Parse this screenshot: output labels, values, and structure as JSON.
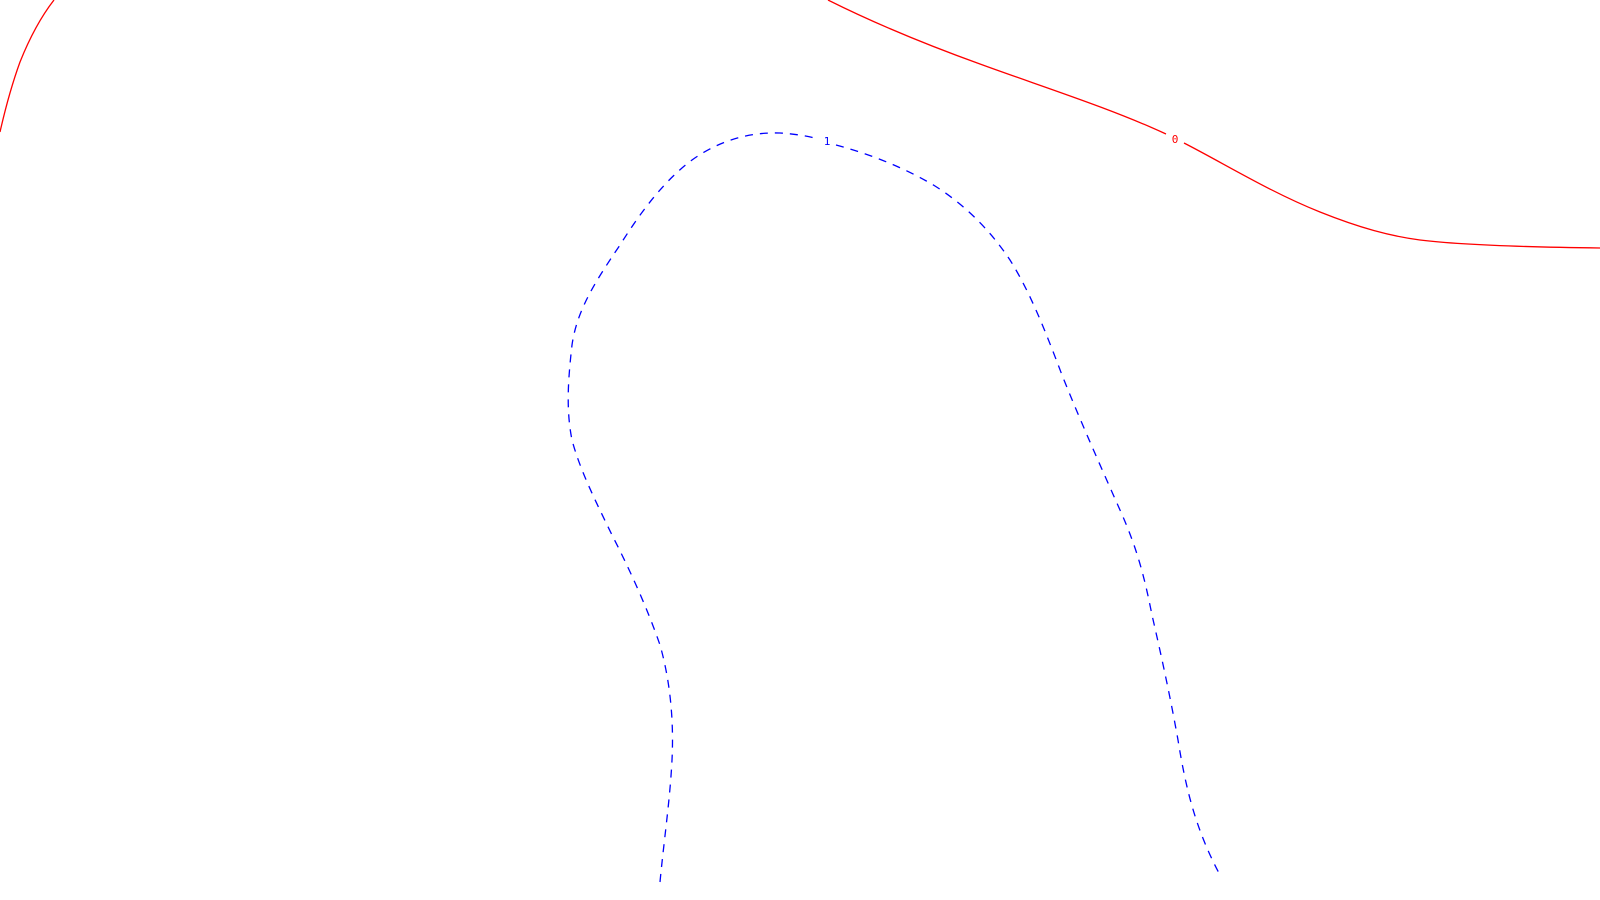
{
  "contours": [
    {
      "id": "contour-0",
      "label": "0",
      "color": "#ff0000",
      "style": "solid"
    },
    {
      "id": "contour-1",
      "label": "1",
      "color": "#0000ff",
      "style": "dashed"
    }
  ]
}
